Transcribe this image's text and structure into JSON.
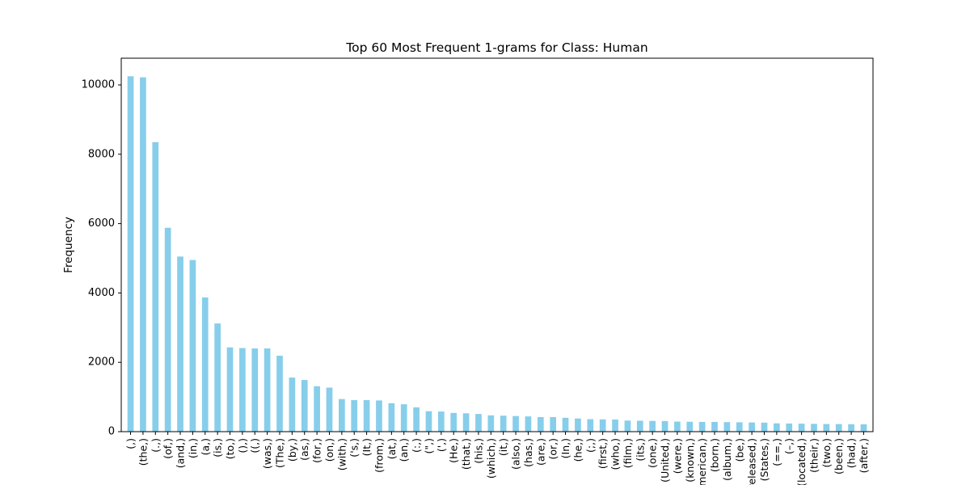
{
  "chart_data": {
    "type": "bar",
    "title": "Top 60 Most Frequent 1-grams for Class: Human",
    "xlabel": "",
    "ylabel": "Frequency",
    "ylim": [
      0,
      10770
    ],
    "yticks": [
      0,
      2000,
      4000,
      6000,
      8000,
      10000
    ],
    "grid": false,
    "legend": "none",
    "bar_color": "#87ceeb",
    "categories": [
      "(,)",
      "(the,)",
      "(.,)",
      "(of,)",
      "(and,)",
      "(in,)",
      "(a,)",
      "(is,)",
      "(to,)",
      "(),)",
      "((,)",
      "(was,)",
      "(The,)",
      "(by,)",
      "(as,)",
      "(for,)",
      "(on,)",
      "(with,)",
      "('s,)",
      "(It,)",
      "(from,)",
      "(at,)",
      "(an,)",
      "(:,)",
      "(\",)",
      "(',)",
      "(He,)",
      "(that,)",
      "(his,)",
      "(which,)",
      "(it,)",
      "(also,)",
      "(has,)",
      "(are,)",
      "(or,)",
      "(In,)",
      "(he,)",
      "(;,)",
      "(first,)",
      "(who,)",
      "(film,)",
      "(its,)",
      "(one,)",
      "(United,)",
      "(were,)",
      "(known,)",
      "(American,)",
      "(born,)",
      "(album,)",
      "(be,)",
      "(released,)",
      "(States,)",
      "(==,)",
      "(–,)",
      "(located,)",
      "(their,)",
      "(two,)",
      "(been,)",
      "(had,)",
      "(after,)"
    ],
    "values": [
      10250,
      10220,
      8350,
      5880,
      5050,
      4950,
      3870,
      3120,
      2430,
      2410,
      2400,
      2400,
      2190,
      1560,
      1490,
      1310,
      1270,
      940,
      910,
      910,
      900,
      820,
      790,
      700,
      590,
      580,
      540,
      530,
      510,
      470,
      460,
      450,
      440,
      420,
      420,
      400,
      380,
      360,
      355,
      350,
      320,
      315,
      310,
      305,
      290,
      285,
      280,
      280,
      275,
      270,
      265,
      260,
      240,
      235,
      230,
      225,
      220,
      218,
      215,
      212
    ]
  }
}
